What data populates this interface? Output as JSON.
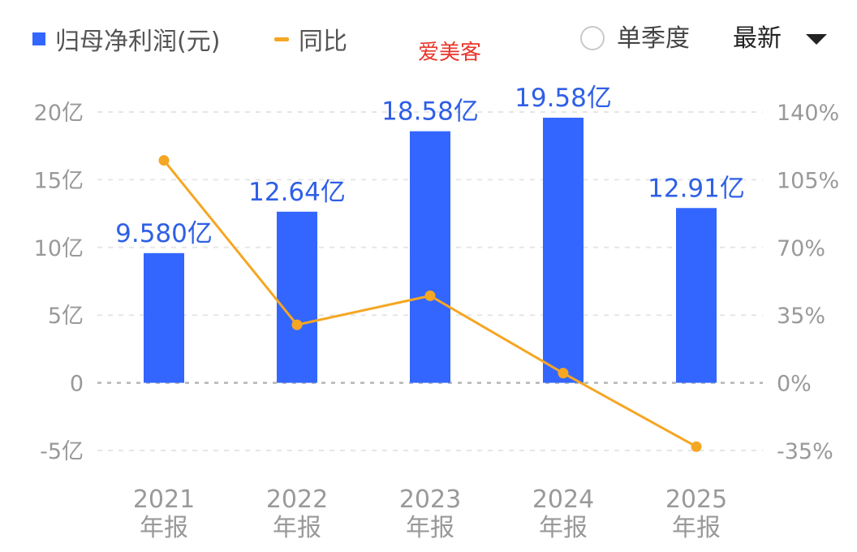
{
  "legend": {
    "bar_label": "归母净利润(元)",
    "line_label": "同比"
  },
  "company_name": "爱美客",
  "controls": {
    "single_quarter_label": "单季度",
    "latest_label": "最新"
  },
  "colors": {
    "bar": "#3366ff",
    "line": "#f5a623",
    "bar_label": "#2f5fe6",
    "axis_text": "#999999",
    "grid": "#e6e6e6",
    "zero_line": "#b5b5b5"
  },
  "chart_data": {
    "type": "bar+line",
    "categories": [
      [
        "2021",
        "年报"
      ],
      [
        "2022",
        "年报"
      ],
      [
        "2023",
        "年报"
      ],
      [
        "2024",
        "年报"
      ],
      [
        "2025",
        "年报"
      ]
    ],
    "series": [
      {
        "name": "归母净利润(元)",
        "type": "bar",
        "axis": "left",
        "values": [
          9.58,
          12.64,
          18.58,
          19.58,
          12.91
        ],
        "labels": [
          "9.580亿",
          "12.64亿",
          "18.58亿",
          "19.58亿",
          "12.91亿"
        ]
      },
      {
        "name": "同比",
        "type": "line",
        "axis": "right",
        "values": [
          115,
          30,
          45,
          5,
          -33
        ]
      }
    ],
    "y_left": {
      "ticks": [
        20,
        15,
        10,
        5,
        0,
        -5
      ],
      "tick_labels": [
        "20亿",
        "15亿",
        "10亿",
        "5亿",
        "0",
        "-5亿"
      ],
      "ylim": [
        -5,
        20
      ]
    },
    "y_right": {
      "ticks": [
        140,
        105,
        70,
        35,
        0,
        -35
      ],
      "tick_labels": [
        "140%",
        "105%",
        "70%",
        "35%",
        "0%",
        "-35%"
      ],
      "ylim": [
        -35,
        140
      ]
    },
    "grid": true,
    "legend_position": "top-left"
  }
}
